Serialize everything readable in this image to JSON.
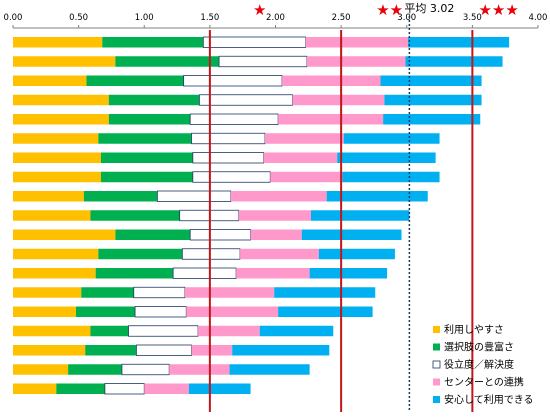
{
  "chart_data": {
    "type": "bar",
    "orientation": "horizontal",
    "stacked": true,
    "xlim": [
      0,
      4
    ],
    "x_ticks": [
      "0.00",
      "0.50",
      "1.00",
      "1.50",
      "2.00",
      "2.50",
      "3.00",
      "3.50",
      "4.00"
    ],
    "x_tick_values": [
      0,
      0.5,
      1,
      1.5,
      2,
      2.5,
      3,
      3.5,
      4
    ],
    "x_axis_position": "top",
    "grid": false,
    "stars": [
      "★",
      "★★",
      "★★★"
    ],
    "star_positions": [
      1.88,
      2.87,
      3.7
    ],
    "reference_lines": [
      1.5,
      2.5,
      3.5
    ],
    "reference_line_color": "#c0161c",
    "average": {
      "label": "平均 3.02",
      "value": 3.02,
      "color": "#1f3864"
    },
    "legend_position": "bottom-right",
    "series": [
      {
        "name": "利用しやすさ",
        "color": "#ffc000",
        "outline": false,
        "values": [
          0.68,
          0.78,
          0.56,
          0.73,
          0.73,
          0.65,
          0.67,
          0.67,
          0.54,
          0.59,
          0.78,
          0.65,
          0.63,
          0.52,
          0.48,
          0.59,
          0.55,
          0.42,
          0.33
        ]
      },
      {
        "name": "選択肢の豊富さ",
        "color": "#00b050",
        "outline": false,
        "values": [
          0.77,
          0.79,
          0.74,
          0.69,
          0.62,
          0.71,
          0.7,
          0.7,
          0.56,
          0.68,
          0.57,
          0.64,
          0.59,
          0.4,
          0.45,
          0.29,
          0.39,
          0.41,
          0.37
        ]
      },
      {
        "name": "役立度／解決度",
        "color": "#ffffff",
        "outline": true,
        "values": [
          0.78,
          0.67,
          0.75,
          0.71,
          0.67,
          0.56,
          0.54,
          0.59,
          0.56,
          0.45,
          0.46,
          0.44,
          0.48,
          0.39,
          0.39,
          0.53,
          0.42,
          0.36,
          0.3
        ]
      },
      {
        "name": "センターとの連携",
        "color": "#ff99cc",
        "outline": false,
        "values": [
          0.78,
          0.75,
          0.75,
          0.7,
          0.8,
          0.6,
          0.56,
          0.55,
          0.73,
          0.55,
          0.39,
          0.6,
          0.56,
          0.68,
          0.7,
          0.47,
          0.31,
          0.46,
          0.34
        ]
      },
      {
        "name": "安心して利用できる",
        "color": "#00b0f0",
        "outline": false,
        "values": [
          0.77,
          0.74,
          0.77,
          0.74,
          0.74,
          0.73,
          0.75,
          0.74,
          0.77,
          0.75,
          0.76,
          0.58,
          0.59,
          0.77,
          0.72,
          0.56,
          0.74,
          0.61,
          0.47
        ]
      }
    ]
  },
  "legend": {
    "items": [
      {
        "label": "利用しやすさ",
        "color": "#ffc000",
        "outline": false
      },
      {
        "label": "選択肢の豊富さ",
        "color": "#00b050",
        "outline": false
      },
      {
        "label": "役立度／解決度",
        "color": "#ffffff",
        "outline": true
      },
      {
        "label": "センターとの連携",
        "color": "#ff99cc",
        "outline": false
      },
      {
        "label": "安心して利用できる",
        "color": "#00b0f0",
        "outline": false
      }
    ]
  }
}
